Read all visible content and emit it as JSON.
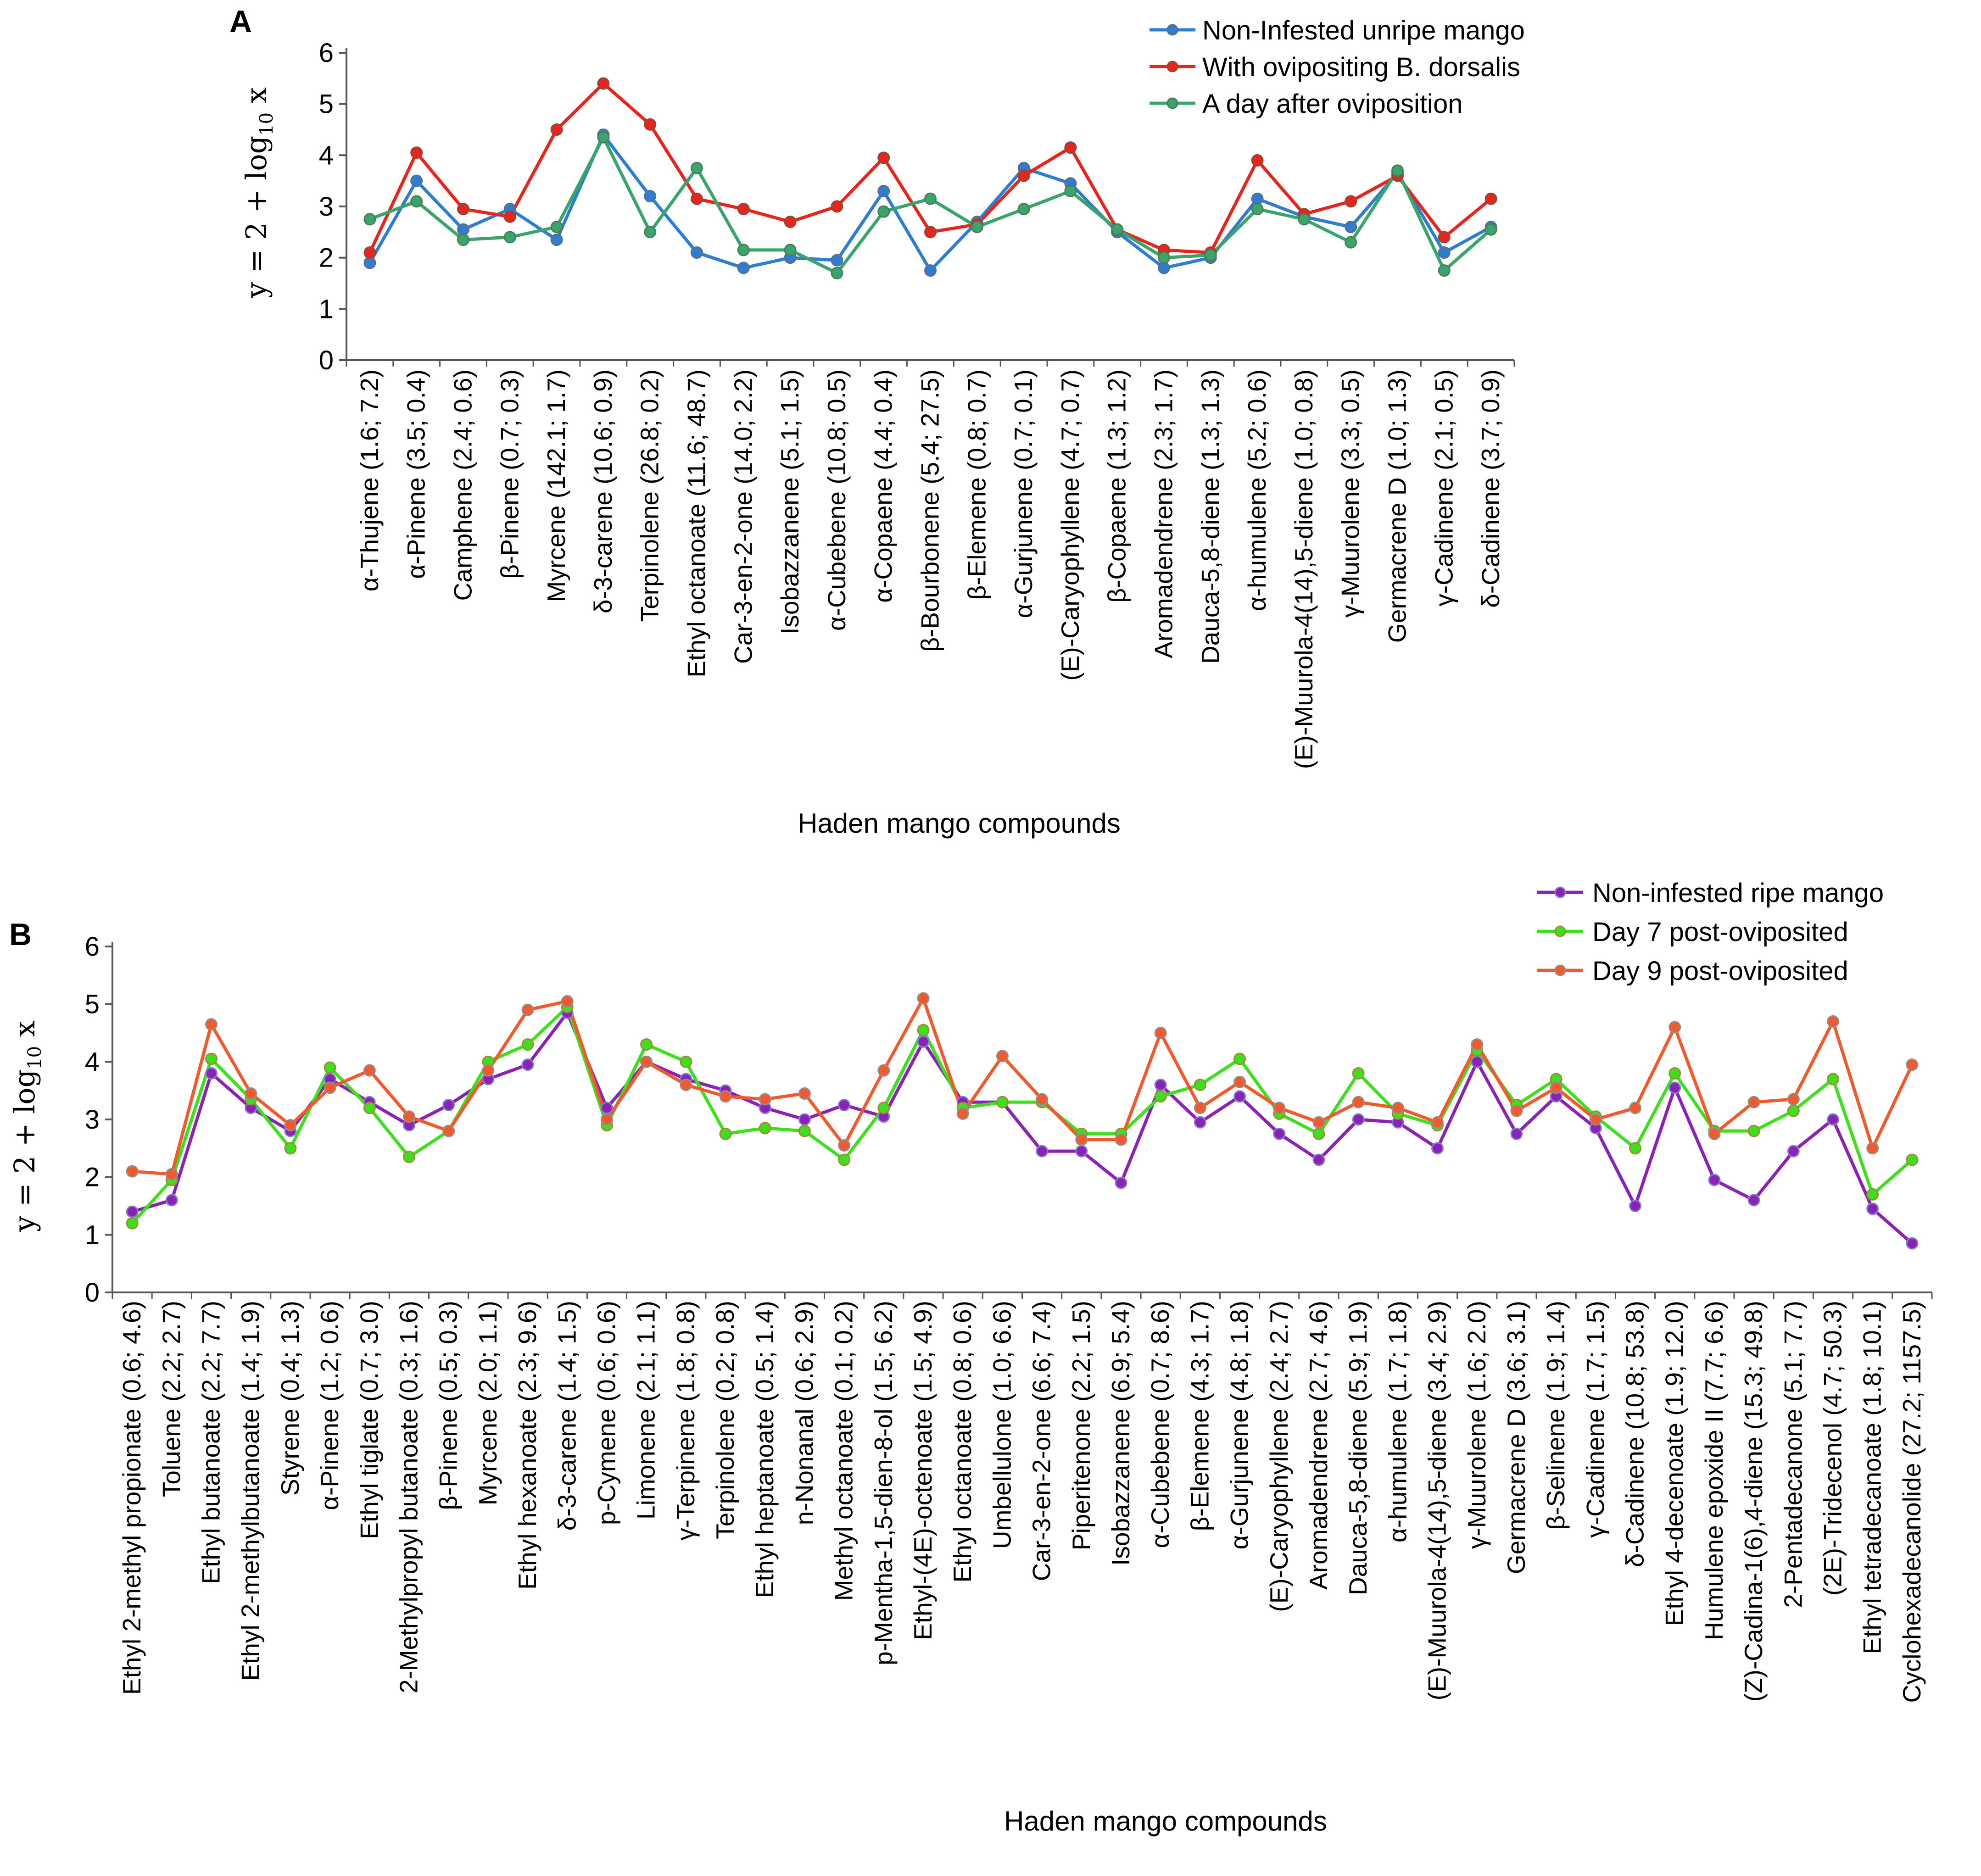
{
  "chart_data": [
    {
      "type": "line",
      "panel": "A",
      "xlabel": "Haden mango compounds",
      "ylabel": {
        "prefix": "y = 2 + log",
        "sub": "10",
        "suffix": " x"
      },
      "ylim": [
        0,
        6
      ],
      "yticks": [
        0,
        1,
        2,
        3,
        4,
        5,
        6
      ],
      "legend_position": "top-right",
      "categories": [
        "α-Thujene (1.6; 7.2)",
        "α-Pinene (3.5; 0.4)",
        "Camphene (2.4; 0.6)",
        "β-Pinene (0.7; 0.3)",
        "Myrcene (142.1; 1.7)",
        "δ-3-carene (10.6; 0.9)",
        "Terpinolene (26.8; 0.2)",
        "Ethyl octanoate (11.6; 48.7)",
        "Car-3-en-2-one (14.0; 2.2)",
        "Isobazzanene (5.1; 1.5)",
        "α-Cubebene (10.8; 0.5)",
        "α-Copaene (4.4; 0.4)",
        "β-Bourbonene (5.4; 27.5)",
        "β-Elemene (0.8; 0.7)",
        "α-Gurjunene (0.7; 0.1)",
        "(E)-Caryophyllene (4.7; 0.7)",
        "β-Copaene (1.3; 1.2)",
        "Aromadendrene (2.3; 1.7)",
        "Dauca-5,8-diene (1.3; 1.3)",
        "α-humulene (5.2; 0.6)",
        "(E)-Muurola-4(14),5-diene (1.0; 0.8)",
        "γ-Muurolene (3.3; 0.5)",
        "Germacrene D (1.0; 1.3)",
        "γ-Cadinene (2.1; 0.5)",
        "δ-Cadinene (3.7; 0.9)"
      ],
      "series": [
        {
          "name": "Non-Infested unripe mango",
          "color": "#2e7dd1",
          "values": [
            1.9,
            3.5,
            2.55,
            2.95,
            2.35,
            4.4,
            3.2,
            2.1,
            1.8,
            2.0,
            1.95,
            3.3,
            1.75,
            2.7,
            3.75,
            3.45,
            2.5,
            1.8,
            2.0,
            3.15,
            2.8,
            2.6,
            3.65,
            2.1,
            2.6
          ]
        },
        {
          "name": "With ovipositing B. dorsalis",
          "color": "#e8251c",
          "values": [
            2.1,
            4.05,
            2.95,
            2.8,
            4.5,
            5.4,
            4.6,
            3.15,
            2.95,
            2.7,
            3.0,
            3.95,
            2.5,
            2.65,
            3.6,
            4.15,
            2.55,
            2.15,
            2.1,
            3.9,
            2.85,
            3.1,
            3.6,
            2.4,
            3.15
          ]
        },
        {
          "name": "A day after oviposition",
          "color": "#3aa56b",
          "values": [
            2.75,
            3.1,
            2.35,
            2.4,
            2.6,
            4.35,
            2.5,
            3.75,
            2.15,
            2.15,
            1.7,
            2.9,
            3.15,
            2.6,
            2.95,
            3.3,
            2.55,
            2.0,
            2.05,
            2.95,
            2.75,
            2.3,
            3.7,
            1.75,
            2.55
          ]
        }
      ]
    },
    {
      "type": "line",
      "panel": "B",
      "xlabel": "Haden mango compounds",
      "ylabel": {
        "prefix": "y = 2 + log",
        "sub": "10",
        "suffix": " x"
      },
      "ylim": [
        0,
        6
      ],
      "yticks": [
        0,
        1,
        2,
        3,
        4,
        5,
        6
      ],
      "legend_position": "top-right",
      "categories": [
        "Ethyl 2-methyl propionate (0.6; 4.6)",
        "Toluene (2.2; 2.7)",
        "Ethyl butanoate (2.2; 7.7)",
        "Ethyl 2-methylbutanoate (1.4; 1.9)",
        "Styrene (0.4; 1.3)",
        "α-Pinene (1.2; 0.6)",
        "Ethyl tiglate (0.7; 3.0)",
        "2-Methylpropyl butanoate (0.3; 1.6)",
        "β-Pinene (0.5; 0.3)",
        "Myrcene (2.0; 1.1)",
        "Ethyl hexanoate (2.3; 9.6)",
        "δ-3-carene (1.4; 1.5)",
        "p-Cymene (0.6; 0.6)",
        "Limonene (2.1; 1.1)",
        "γ-Terpinene (1.8; 0.8)",
        "Terpinolene (0.2; 0.8)",
        "Ethyl heptanoate (0.5; 1.4)",
        "n-Nonanal (0.6; 2.9)",
        "Methyl octanoate (0.1; 0.2)",
        "p-Mentha-1,5-dien-8-ol (1.5; 6.2)",
        "Ethyl-(4E)-octenoate (1.5; 4.9)",
        "Ethyl octanoate (0.8; 0.6)",
        "Umbellulone (1.0; 6.6)",
        "Car-3-en-2-one (6.6; 7.4)",
        "Piperitenone (2.2; 1.5)",
        "Isobazzanene (6.9; 5.4)",
        "α-Cubebene (0.7; 8.6)",
        "β-Elemene (4.3; 1.7)",
        "α-Gurjunene (4.8; 1.8)",
        "(E)-Caryophyllene (2.4; 2.7)",
        "Aromadendrene (2.7; 4.6)",
        "Dauca-5,8-diene (5.9; 1.9)",
        "α-humulene (1.7; 1.8)",
        "(E)-Muurola-4(14),5-diene (3.4; 2.9)",
        "γ-Muurolene (1.6; 2.0)",
        "Germacrene D (3.6; 3.1)",
        "β-Selinene (1.9; 1.4)",
        "γ-Cadinene (1.7; 1.5)",
        "δ-Cadinene (10.8; 53.8)",
        "Ethyl 4-decenoate (1.9; 12.0)",
        "Humulene epoxide II (7.7; 6.6)",
        "(Z)-Cadina-1(6),4-diene (15.3; 49.8)",
        "2-Pentadecanone (5.1; 7.7)",
        "(2E)-Tridecenol (4.7; 50.3)",
        "Ethyl tetradecanoate (1.8; 10.1)",
        "Cyclohexadecanolide (27.2; 1157.5)"
      ],
      "series": [
        {
          "name": "Non-infested ripe mango",
          "color": "#8b22b5",
          "values": [
            1.4,
            1.6,
            3.8,
            3.2,
            2.8,
            3.7,
            3.3,
            2.9,
            3.25,
            3.7,
            3.95,
            4.85,
            3.2,
            4.0,
            3.7,
            3.5,
            3.2,
            3.0,
            3.25,
            3.05,
            4.35,
            3.3,
            3.3,
            2.45,
            2.45,
            1.9,
            3.6,
            2.95,
            3.4,
            2.75,
            2.3,
            3.0,
            2.95,
            2.5,
            4.0,
            2.75,
            3.4,
            2.85,
            1.5,
            3.55,
            1.95,
            1.6,
            2.45,
            3.0,
            1.45,
            0.85
          ]
        },
        {
          "name": "Day 7 post-oviposited",
          "color": "#3ee01e",
          "values": [
            1.2,
            1.95,
            4.05,
            3.35,
            2.5,
            3.9,
            3.2,
            2.35,
            2.8,
            4.0,
            4.3,
            4.95,
            2.9,
            4.3,
            4.0,
            2.75,
            2.85,
            2.8,
            2.3,
            3.2,
            4.55,
            3.2,
            3.3,
            3.3,
            2.75,
            2.75,
            3.4,
            3.6,
            4.05,
            3.1,
            2.75,
            3.8,
            3.1,
            2.9,
            4.2,
            3.25,
            3.7,
            3.05,
            2.5,
            3.8,
            2.8,
            2.8,
            3.15,
            3.7,
            1.7,
            2.3
          ]
        },
        {
          "name": "Day 9 post-oviposited",
          "color": "#f05a2c",
          "values": [
            2.1,
            2.05,
            4.65,
            3.45,
            2.9,
            3.55,
            3.85,
            3.05,
            2.8,
            3.85,
            4.9,
            5.05,
            3.0,
            4.0,
            3.6,
            3.4,
            3.35,
            3.45,
            2.55,
            3.85,
            5.1,
            3.1,
            4.1,
            3.35,
            2.65,
            2.65,
            4.5,
            3.2,
            3.65,
            3.2,
            2.95,
            3.3,
            3.2,
            2.95,
            4.3,
            3.15,
            3.55,
            3.0,
            3.2,
            4.6,
            2.75,
            3.3,
            3.35,
            4.7,
            2.5,
            3.95
          ]
        }
      ]
    }
  ]
}
